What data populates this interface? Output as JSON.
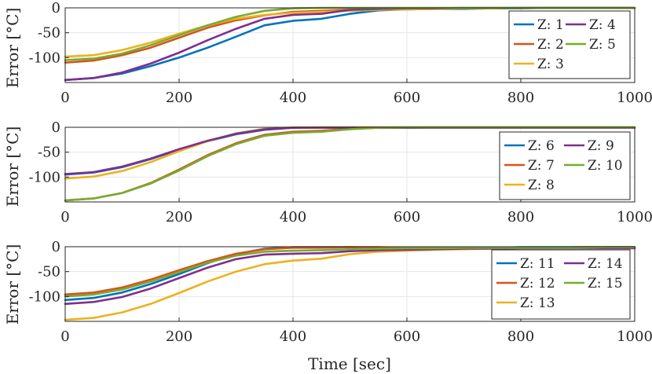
{
  "chart_data": [
    {
      "type": "line",
      "title": "",
      "xlabel": "",
      "ylabel": "Error [°C]",
      "xlim": [
        0,
        1000
      ],
      "ylim": [
        -150,
        0
      ],
      "xticks": [
        0,
        200,
        400,
        600,
        800,
        1000
      ],
      "yticks": [
        0,
        -50,
        -100
      ],
      "x": [
        0,
        50,
        100,
        150,
        200,
        250,
        300,
        350,
        400,
        450,
        500,
        550,
        600,
        650,
        700,
        750,
        800,
        850,
        900,
        950,
        1000
      ],
      "legend_loc": "top-right",
      "series": [
        {
          "name": "Z: 1",
          "color": "#0072BD",
          "values": [
            -145,
            -141,
            -132,
            -117,
            -100,
            -80,
            -58,
            -35,
            -26,
            -22,
            -12,
            -5,
            -3,
            -2,
            -2,
            -1,
            -1,
            0,
            0,
            0,
            0
          ]
        },
        {
          "name": "Z: 2",
          "color": "#D95319",
          "values": [
            -110,
            -106,
            -95,
            -80,
            -60,
            -40,
            -25,
            -15,
            -8,
            -6,
            -4,
            -3,
            -2,
            -1,
            -1,
            -1,
            0,
            0,
            0,
            0,
            0
          ]
        },
        {
          "name": "Z: 3",
          "color": "#EDB120",
          "values": [
            -98,
            -95,
            -85,
            -70,
            -52,
            -35,
            -22,
            -14,
            -10,
            -8,
            -6,
            -4,
            -3,
            -2,
            -1,
            -1,
            0,
            0,
            0,
            0,
            0
          ]
        },
        {
          "name": "Z: 4",
          "color": "#7E2F8E",
          "values": [
            -145,
            -141,
            -130,
            -112,
            -90,
            -65,
            -42,
            -22,
            -14,
            -12,
            -4,
            -2,
            -1,
            -1,
            0,
            0,
            0,
            0,
            0,
            0,
            0
          ]
        },
        {
          "name": "Z: 5",
          "color": "#77AC30",
          "values": [
            -105,
            -102,
            -92,
            -75,
            -55,
            -35,
            -18,
            -6,
            -1,
            0,
            0,
            0,
            0,
            0,
            0,
            0,
            0,
            0,
            0,
            0,
            0
          ]
        }
      ]
    },
    {
      "type": "line",
      "title": "",
      "xlabel": "",
      "ylabel": "Error [°C]",
      "xlim": [
        0,
        1000
      ],
      "ylim": [
        -150,
        0
      ],
      "xticks": [
        0,
        200,
        400,
        600,
        800,
        1000
      ],
      "yticks": [
        0,
        -50,
        -100
      ],
      "x": [
        0,
        50,
        100,
        150,
        200,
        250,
        300,
        350,
        400,
        450,
        500,
        550,
        600,
        650,
        700,
        750,
        800,
        850,
        900,
        950,
        1000
      ],
      "legend_loc": "top-right",
      "series": [
        {
          "name": "Z: 6",
          "color": "#0072BD",
          "values": [
            -95,
            -91,
            -80,
            -64,
            -45,
            -28,
            -14,
            -5,
            -1,
            0,
            0,
            0,
            0,
            0,
            0,
            0,
            0,
            0,
            0,
            0,
            0
          ]
        },
        {
          "name": "Z: 7",
          "color": "#D95319",
          "values": [
            -147,
            -143,
            -132,
            -112,
            -85,
            -56,
            -32,
            -15,
            -9,
            -7,
            -3,
            -1,
            -1,
            0,
            0,
            0,
            0,
            0,
            0,
            0,
            0
          ]
        },
        {
          "name": "Z: 8",
          "color": "#EDB120",
          "values": [
            -103,
            -99,
            -88,
            -70,
            -48,
            -28,
            -12,
            -3,
            0,
            0,
            0,
            0,
            0,
            0,
            0,
            0,
            0,
            0,
            0,
            0,
            0
          ]
        },
        {
          "name": "Z: 9",
          "color": "#7E2F8E",
          "values": [
            -94,
            -90,
            -79,
            -63,
            -44,
            -27,
            -13,
            -4,
            -1,
            -1,
            -1,
            -1,
            -1,
            -1,
            -1,
            -1,
            -1,
            -1,
            -1,
            -1,
            -1
          ]
        },
        {
          "name": "Z: 10",
          "color": "#77AC30",
          "values": [
            -147,
            -143,
            -132,
            -113,
            -87,
            -58,
            -34,
            -17,
            -11,
            -9,
            -4,
            -1,
            0,
            0,
            0,
            0,
            0,
            0,
            0,
            0,
            0
          ]
        }
      ]
    },
    {
      "type": "line",
      "title": "",
      "xlabel": "Time [sec]",
      "ylabel": "Error [°C]",
      "xlim": [
        0,
        1000
      ],
      "ylim": [
        -150,
        0
      ],
      "xticks": [
        0,
        200,
        400,
        600,
        800,
        1000
      ],
      "yticks": [
        0,
        -50,
        -100
      ],
      "x": [
        0,
        50,
        100,
        150,
        200,
        250,
        300,
        350,
        400,
        450,
        500,
        550,
        600,
        650,
        700,
        750,
        800,
        850,
        900,
        950,
        1000
      ],
      "legend_loc": "right",
      "series": [
        {
          "name": "Z: 11",
          "color": "#0072BD",
          "values": [
            -107,
            -103,
            -92,
            -75,
            -55,
            -33,
            -15,
            -4,
            -1,
            -1,
            -1,
            -2,
            -2,
            -2,
            -2,
            -2,
            -1,
            -1,
            -1,
            -1,
            -1
          ]
        },
        {
          "name": "Z: 12",
          "color": "#D95319",
          "values": [
            -96,
            -92,
            -82,
            -66,
            -47,
            -29,
            -14,
            -5,
            -2,
            -2,
            -1,
            -1,
            -2,
            -2,
            -2,
            -2,
            -2,
            -2,
            -1,
            -1,
            -1
          ]
        },
        {
          "name": "Z: 13",
          "color": "#EDB120",
          "values": [
            -147,
            -143,
            -132,
            -115,
            -93,
            -70,
            -50,
            -35,
            -28,
            -24,
            -15,
            -10,
            -8,
            -6,
            -5,
            -4,
            -3,
            -3,
            -2,
            -2,
            -2
          ]
        },
        {
          "name": "Z: 14",
          "color": "#7E2F8E",
          "values": [
            -115,
            -111,
            -101,
            -84,
            -63,
            -42,
            -25,
            -16,
            -14,
            -13,
            -9,
            -7,
            -6,
            -5,
            -4,
            -4,
            -3,
            -3,
            -3,
            -3,
            -3
          ]
        },
        {
          "name": "Z: 15",
          "color": "#77AC30",
          "values": [
            -100,
            -96,
            -86,
            -70,
            -51,
            -32,
            -18,
            -10,
            -8,
            -7,
            -5,
            -4,
            -3,
            -3,
            -2,
            -2,
            -2,
            -2,
            -2,
            -1,
            -1
          ]
        }
      ]
    }
  ]
}
